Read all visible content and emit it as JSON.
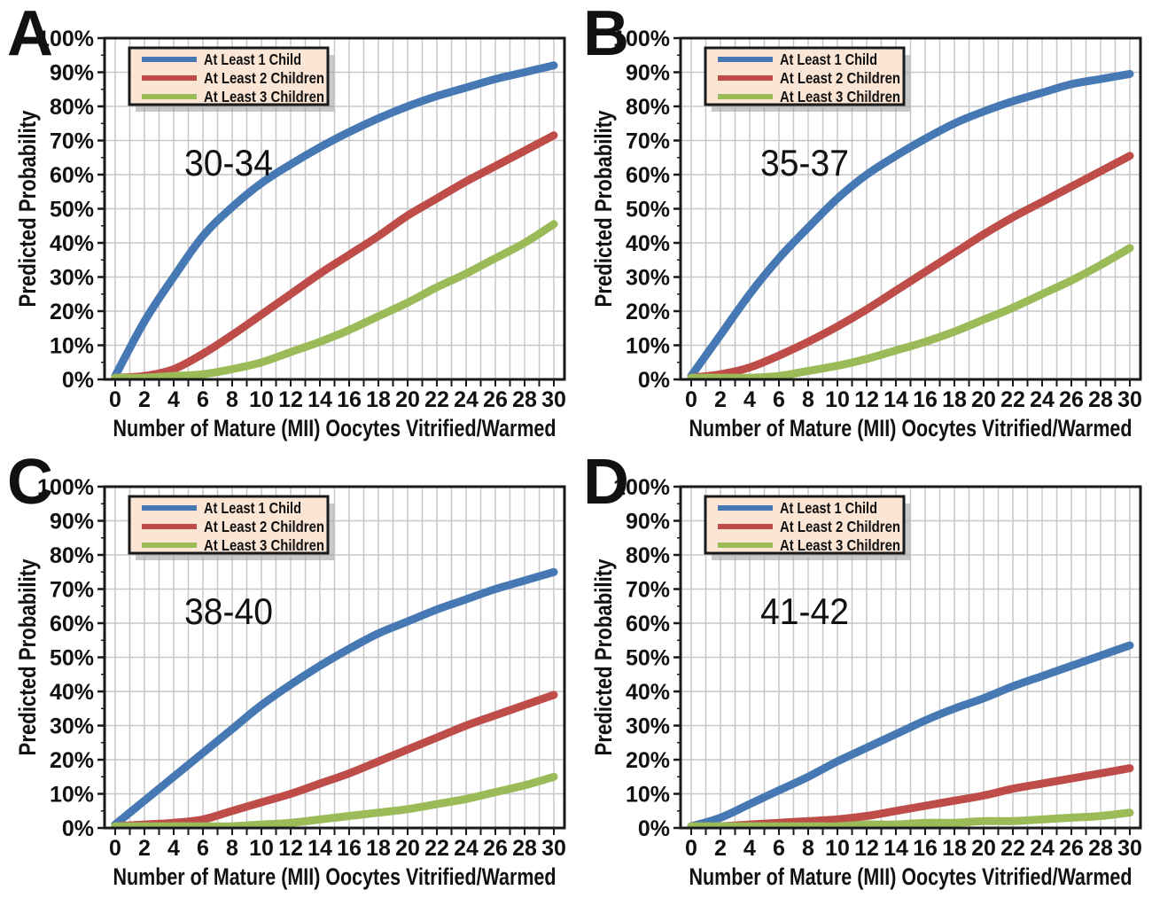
{
  "figure": {
    "x_axis_label": "Number of Mature (MII) Oocytes Vitrified/Warmed",
    "y_axis_label": "Predicted Probability",
    "y_tick_labels": [
      "0%",
      "10%",
      "20%",
      "30%",
      "40%",
      "50%",
      "60%",
      "70%",
      "80%",
      "90%",
      "100%"
    ],
    "x_tick_labels": [
      "0",
      "2",
      "4",
      "6",
      "8",
      "10",
      "12",
      "14",
      "16",
      "18",
      "20",
      "22",
      "24",
      "26",
      "28",
      "30"
    ]
  },
  "legend": {
    "entries": [
      {
        "label": "At Least 1 Child",
        "color": "#4678B4"
      },
      {
        "label": "At Least 2 Children",
        "color": "#BE4C49"
      },
      {
        "label": "At Least 3 Children",
        "color": "#9BBA58"
      }
    ],
    "background": "#FBE5D5",
    "border_color": "#1A1A1A",
    "shadow_color": "#9B9B9B"
  },
  "colors": {
    "curve_blue": "#4678B4",
    "curve_red": "#BE4C49",
    "curve_green": "#9BBA58",
    "gridline": "#C7C7C7",
    "axis": "#1A1A1A",
    "plot_background": "#FFFFFF",
    "text": "#111111"
  },
  "chart_data": [
    {
      "panel": "A",
      "type": "line",
      "title": "30-34",
      "xlabel": "Number of Mature (MII) Oocytes Vitrified/Warmed",
      "ylabel": "Predicted Probability",
      "xlim": [
        0,
        30
      ],
      "ylim": [
        0,
        100
      ],
      "grid": true,
      "legend_position": "top-left",
      "x": [
        0,
        2,
        4,
        6,
        8,
        10,
        12,
        14,
        16,
        18,
        20,
        22,
        24,
        26,
        28,
        30
      ],
      "series": [
        {
          "name": "At Least 1 Child",
          "color": "#4678B4",
          "values": [
            1,
            17,
            30,
            42,
            50.5,
            57.5,
            63,
            68,
            72.5,
            76.5,
            80,
            83,
            85.5,
            88,
            90,
            92
          ]
        },
        {
          "name": "At Least 2 Children",
          "color": "#BE4C49",
          "values": [
            0.5,
            1,
            3,
            7.5,
            13,
            19,
            25,
            31,
            36.5,
            42,
            48,
            53,
            58,
            62.5,
            67,
            71.5
          ]
        },
        {
          "name": "At Least 3 Children",
          "color": "#9BBA58",
          "values": [
            0.5,
            0.5,
            1,
            1.5,
            3,
            5,
            8,
            11,
            14.5,
            18.5,
            22.5,
            27,
            31,
            35.5,
            40,
            45.5
          ]
        }
      ]
    },
    {
      "panel": "B",
      "type": "line",
      "title": "35-37",
      "xlabel": "Number of Mature (MII) Oocytes Vitrified/Warmed",
      "ylabel": "Predicted Probability",
      "xlim": [
        0,
        30
      ],
      "ylim": [
        0,
        100
      ],
      "grid": true,
      "legend_position": "top-left",
      "x": [
        0,
        2,
        4,
        6,
        8,
        10,
        12,
        14,
        16,
        18,
        20,
        22,
        24,
        26,
        28,
        30
      ],
      "series": [
        {
          "name": "At Least 1 Child",
          "color": "#4678B4",
          "values": [
            1,
            13,
            25,
            35.5,
            44.5,
            53,
            60,
            65.5,
            70.5,
            75,
            78.5,
            81.5,
            84,
            86.5,
            88,
            89.5
          ]
        },
        {
          "name": "At Least 2 Children",
          "color": "#BE4C49",
          "values": [
            0.5,
            1.5,
            3.5,
            7,
            11,
            15.5,
            20.5,
            26,
            31.5,
            37,
            42.5,
            47.5,
            52,
            56.5,
            61,
            65.5
          ]
        },
        {
          "name": "At Least 3 Children",
          "color": "#9BBA58",
          "values": [
            0.5,
            0.5,
            0.5,
            1,
            2.5,
            4,
            6,
            8.5,
            11,
            14,
            17.5,
            21,
            25,
            29,
            33.5,
            38.5
          ]
        }
      ]
    },
    {
      "panel": "C",
      "type": "line",
      "title": "38-40",
      "xlabel": "Number of Mature (MII) Oocytes Vitrified/Warmed",
      "ylabel": "Predicted Probability",
      "xlim": [
        0,
        30
      ],
      "ylim": [
        0,
        100
      ],
      "grid": true,
      "legend_position": "top-left",
      "x": [
        0,
        2,
        4,
        6,
        8,
        10,
        12,
        14,
        16,
        18,
        20,
        22,
        24,
        26,
        28,
        30
      ],
      "series": [
        {
          "name": "At Least 1 Child",
          "color": "#4678B4",
          "values": [
            1,
            8,
            15,
            22,
            29,
            36,
            42,
            47.5,
            52.5,
            57,
            60.5,
            64,
            67,
            70,
            72.5,
            75
          ]
        },
        {
          "name": "At Least 2 Children",
          "color": "#BE4C49",
          "values": [
            0.5,
            1,
            1.5,
            2.5,
            5,
            7.5,
            10,
            13,
            16,
            19.5,
            23,
            26.5,
            30,
            33,
            36,
            39
          ]
        },
        {
          "name": "At Least 3 Children",
          "color": "#9BBA58",
          "values": [
            0.5,
            0.5,
            0.5,
            0.5,
            0.5,
            1,
            1.5,
            2.5,
            3.5,
            4.5,
            5.5,
            7,
            8.5,
            10.5,
            12.5,
            15
          ]
        }
      ]
    },
    {
      "panel": "D",
      "type": "line",
      "title": "41-42",
      "xlabel": "Number of Mature (MII) Oocytes Vitrified/Warmed",
      "ylabel": "Predicted Probability",
      "xlim": [
        0,
        30
      ],
      "ylim": [
        0,
        100
      ],
      "grid": true,
      "legend_position": "top-left",
      "x": [
        0,
        2,
        4,
        6,
        8,
        10,
        12,
        14,
        16,
        18,
        20,
        22,
        24,
        26,
        28,
        30
      ],
      "series": [
        {
          "name": "At Least 1 Child",
          "color": "#4678B4",
          "values": [
            0.5,
            3,
            7,
            11,
            15,
            19.5,
            23.5,
            27.5,
            31.5,
            35,
            38,
            41.5,
            44.5,
            47.5,
            50.5,
            53.5
          ]
        },
        {
          "name": "At Least 2 Children",
          "color": "#BE4C49",
          "values": [
            0.5,
            0.5,
            1,
            1.5,
            2,
            2.5,
            3.5,
            5,
            6.5,
            8,
            9.5,
            11.5,
            13,
            14.5,
            16,
            17.5
          ]
        },
        {
          "name": "At Least 3 Children",
          "color": "#9BBA58",
          "values": [
            0.5,
            0.5,
            0.5,
            0.5,
            0.5,
            0.5,
            1,
            1,
            1.5,
            1.5,
            2,
            2,
            2.5,
            3,
            3.5,
            4.5
          ]
        }
      ]
    }
  ]
}
